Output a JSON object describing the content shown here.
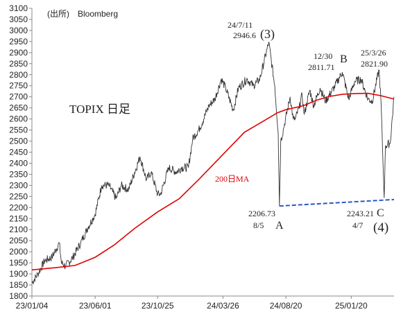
{
  "source_note": "(出所)　Bloomberg",
  "title": "TOPIX 日足",
  "ma_label": "200日MA",
  "chart_data": {
    "type": "line",
    "ylim": [
      1800,
      3100
    ],
    "y_ticks": [
      1800,
      1850,
      1900,
      1950,
      2000,
      2050,
      2100,
      2150,
      2200,
      2250,
      2300,
      2350,
      2400,
      2450,
      2500,
      2550,
      2600,
      2650,
      2700,
      2750,
      2800,
      2850,
      2900,
      2950,
      3000,
      3050,
      3100
    ],
    "x_ticks": [
      {
        "label": "23/01/04",
        "date": "2023-01-04"
      },
      {
        "label": "23/06/01",
        "date": "2023-06-01"
      },
      {
        "label": "23/10/25",
        "date": "2023-10-25"
      },
      {
        "label": "24/03/26",
        "date": "2024-03-26"
      },
      {
        "label": "24/08/20",
        "date": "2024-08-20"
      },
      {
        "label": "25/01/20",
        "date": "2025-01-20"
      }
    ],
    "x_end": "2025-04-30",
    "series": [
      {
        "name": "TOPIX",
        "color": "#333333",
        "points": [
          [
            "2023-01-04",
            1860
          ],
          [
            "2023-01-18",
            1900
          ],
          [
            "2023-02-03",
            1960
          ],
          [
            "2023-02-20",
            1975
          ],
          [
            "2023-03-09",
            2040
          ],
          [
            "2023-03-14",
            1950
          ],
          [
            "2023-03-24",
            1935
          ],
          [
            "2023-04-10",
            1975
          ],
          [
            "2023-04-28",
            2040
          ],
          [
            "2023-05-15",
            2110
          ],
          [
            "2023-06-01",
            2170
          ],
          [
            "2023-06-16",
            2300
          ],
          [
            "2023-07-03",
            2300
          ],
          [
            "2023-07-20",
            2240
          ],
          [
            "2023-08-01",
            2300
          ],
          [
            "2023-08-18",
            2280
          ],
          [
            "2023-09-14",
            2430
          ],
          [
            "2023-09-29",
            2325
          ],
          [
            "2023-10-10",
            2360
          ],
          [
            "2023-10-25",
            2260
          ],
          [
            "2023-11-01",
            2260
          ],
          [
            "2023-11-20",
            2380
          ],
          [
            "2023-12-08",
            2360
          ],
          [
            "2023-12-20",
            2380
          ],
          [
            "2024-01-05",
            2380
          ],
          [
            "2024-01-15",
            2510
          ],
          [
            "2024-02-01",
            2560
          ],
          [
            "2024-02-22",
            2660
          ],
          [
            "2024-03-07",
            2690
          ],
          [
            "2024-03-22",
            2780
          ],
          [
            "2024-04-01",
            2740
          ],
          [
            "2024-04-19",
            2640
          ],
          [
            "2024-05-01",
            2740
          ],
          [
            "2024-05-21",
            2780
          ],
          [
            "2024-06-05",
            2750
          ],
          [
            "2024-06-20",
            2780
          ],
          [
            "2024-07-11",
            2946.6
          ],
          [
            "2024-07-25",
            2750
          ],
          [
            "2024-08-02",
            2540
          ],
          [
            "2024-08-05",
            2206.73
          ],
          [
            "2024-08-08",
            2500
          ],
          [
            "2024-08-15",
            2560
          ],
          [
            "2024-08-30",
            2700
          ],
          [
            "2024-09-06",
            2600
          ],
          [
            "2024-09-11",
            2600
          ],
          [
            "2024-09-20",
            2650
          ],
          [
            "2024-09-27",
            2710
          ],
          [
            "2024-10-02",
            2620
          ],
          [
            "2024-10-15",
            2730
          ],
          [
            "2024-10-24",
            2660
          ],
          [
            "2024-11-08",
            2740
          ],
          [
            "2024-11-21",
            2680
          ],
          [
            "2024-12-13",
            2750
          ],
          [
            "2024-12-30",
            2811.71
          ],
          [
            "2025-01-14",
            2690
          ],
          [
            "2025-01-28",
            2770
          ],
          [
            "2025-02-12",
            2780
          ],
          [
            "2025-02-28",
            2690
          ],
          [
            "2025-03-10",
            2680
          ],
          [
            "2025-03-26",
            2821.9
          ],
          [
            "2025-03-31",
            2660
          ],
          [
            "2025-04-04",
            2410
          ],
          [
            "2025-04-07",
            2243.21
          ],
          [
            "2025-04-10",
            2480
          ],
          [
            "2025-04-21",
            2490
          ],
          [
            "2025-04-30",
            2700
          ]
        ]
      },
      {
        "name": "200日MA",
        "color": "#e00000",
        "points": [
          [
            "2023-01-04",
            1918
          ],
          [
            "2023-03-01",
            1928
          ],
          [
            "2023-04-15",
            1938
          ],
          [
            "2023-06-01",
            1975
          ],
          [
            "2023-07-15",
            2030
          ],
          [
            "2023-09-01",
            2105
          ],
          [
            "2023-10-25",
            2180
          ],
          [
            "2023-12-15",
            2240
          ],
          [
            "2024-01-31",
            2330
          ],
          [
            "2024-03-26",
            2440
          ],
          [
            "2024-05-15",
            2540
          ],
          [
            "2024-06-30",
            2592
          ],
          [
            "2024-07-31",
            2628
          ],
          [
            "2024-08-20",
            2642
          ],
          [
            "2024-09-30",
            2660
          ],
          [
            "2024-10-31",
            2685
          ],
          [
            "2024-11-30",
            2702
          ],
          [
            "2024-12-31",
            2712
          ],
          [
            "2025-01-31",
            2715
          ],
          [
            "2025-02-28",
            2716
          ],
          [
            "2025-03-31",
            2705
          ],
          [
            "2025-04-30",
            2690
          ]
        ]
      }
    ],
    "trendline": {
      "from": [
        "2024-08-05",
        2206.73
      ],
      "to": [
        "2025-04-30",
        2236
      ],
      "color": "#2a55c8"
    },
    "annotations": [
      {
        "id": "peak",
        "lines": [
          "24/7/11",
          "2946.6"
        ],
        "wave": "(3)"
      },
      {
        "id": "a",
        "lines": [
          "2206.73",
          "8/5"
        ],
        "wave": "A"
      },
      {
        "id": "b",
        "lines": [
          "12/30",
          "2811.71"
        ],
        "wave": "B"
      },
      {
        "id": "c_peak",
        "lines": [
          "25/3/26",
          "2821.90"
        ]
      },
      {
        "id": "c",
        "lines": [
          "2243.21",
          "4/7"
        ],
        "wave": "C"
      },
      {
        "id": "four",
        "wave": "(4)"
      }
    ]
  }
}
